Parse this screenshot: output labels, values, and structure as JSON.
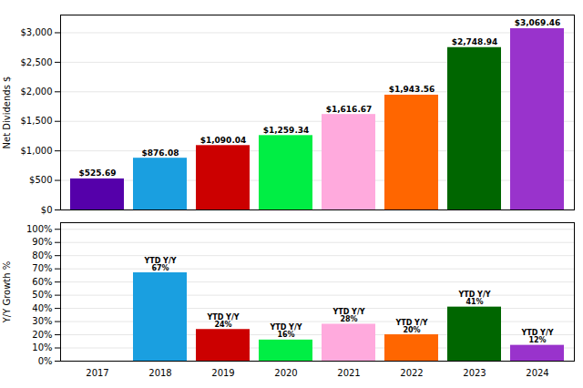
{
  "chart_data": [
    {
      "type": "bar",
      "categories": [
        "2017",
        "2018",
        "2019",
        "2020",
        "2021",
        "2022",
        "2023",
        "2024"
      ],
      "values": [
        525.69,
        876.08,
        1090.04,
        1259.34,
        1616.67,
        1943.56,
        2748.94,
        3069.46
      ],
      "value_labels": [
        "$525.69",
        "$876.08",
        "$1,090.04",
        "$1,259.34",
        "$1,616.67",
        "$1,943.56",
        "$2,748.94",
        "$3,069.46"
      ],
      "colors": [
        "#5500aa",
        "#1a9fe0",
        "#cc0000",
        "#00ee44",
        "#ffaadd",
        "#ff6600",
        "#006600",
        "#9933cc"
      ],
      "ylabel": "Net Dividends $",
      "ylim": [
        0,
        3300
      ],
      "yticks": [
        {
          "value": 0,
          "label": "$0"
        },
        {
          "value": 500,
          "label": "$500"
        },
        {
          "value": 1000,
          "label": "$1,000"
        },
        {
          "value": 1500,
          "label": "$1,500"
        },
        {
          "value": 2000,
          "label": "$2,000"
        },
        {
          "value": 2500,
          "label": "$2,500"
        },
        {
          "value": 3000,
          "label": "$3,000"
        }
      ],
      "grid": true,
      "data_labels": true,
      "tick_labels": "y"
    },
    {
      "type": "bar",
      "categories": [
        "2017",
        "2018",
        "2019",
        "2020",
        "2021",
        "2022",
        "2023",
        "2024"
      ],
      "values": [
        null,
        67,
        24,
        16,
        28,
        20,
        41,
        12
      ],
      "value_labels": [
        null,
        "YTD Y/Y\n67%",
        "YTD Y/Y\n24%",
        "YTD Y/Y\n16%",
        "YTD Y/Y\n28%",
        "YTD Y/Y\n20%",
        "YTD Y/Y\n41%",
        "YTD Y/Y\n12%"
      ],
      "colors": [
        "#5500aa",
        "#1a9fe0",
        "#cc0000",
        "#00ee44",
        "#ffaadd",
        "#ff6600",
        "#006600",
        "#9933cc"
      ],
      "ylabel": "Y/Y Growth %",
      "ylim": [
        0,
        105
      ],
      "yticks": [
        {
          "value": 0,
          "label": "0%"
        },
        {
          "value": 10,
          "label": "10%"
        },
        {
          "value": 20,
          "label": "20%"
        },
        {
          "value": 30,
          "label": "30%"
        },
        {
          "value": 40,
          "label": "40%"
        },
        {
          "value": 50,
          "label": "50%"
        },
        {
          "value": 60,
          "label": "60%"
        },
        {
          "value": 70,
          "label": "70%"
        },
        {
          "value": 80,
          "label": "80%"
        },
        {
          "value": 90,
          "label": "90%"
        },
        {
          "value": 100,
          "label": "100%"
        }
      ],
      "grid": true,
      "data_labels": true
    }
  ]
}
